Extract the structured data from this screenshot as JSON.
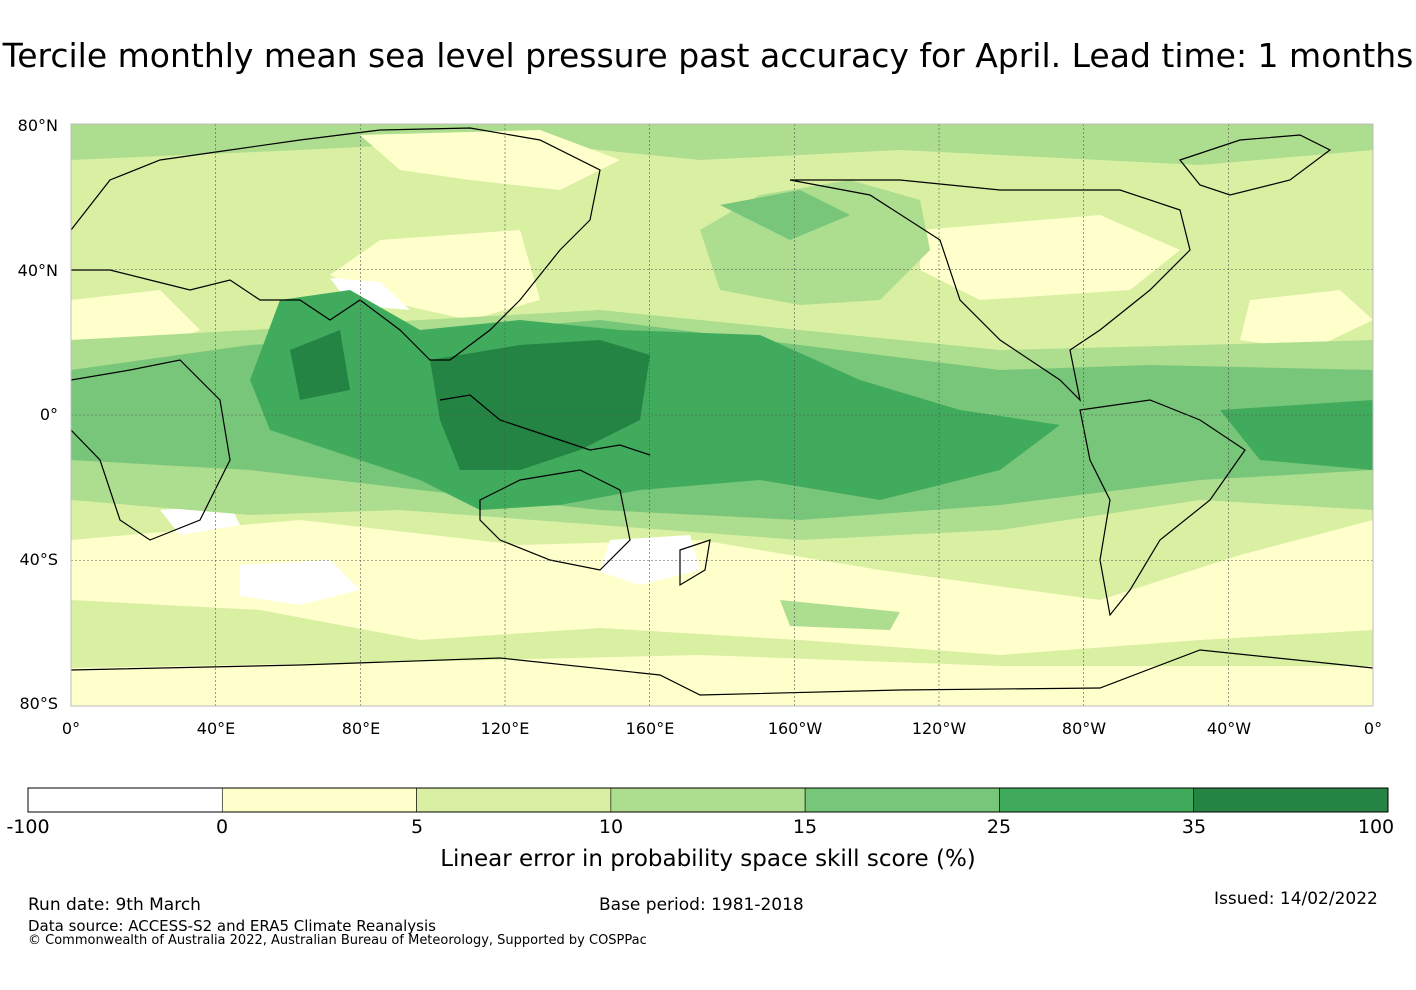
{
  "title": "Tercile monthly mean sea level pressure past accuracy for April. Lead time: 1 months",
  "map": {
    "lat_labels": [
      "80°N",
      "40°N",
      "0°",
      "40°S",
      "80°S"
    ],
    "lon_labels": [
      "0°",
      "40°E",
      "80°E",
      "120°E",
      "160°E",
      "160°W",
      "120°W",
      "80°W",
      "40°W",
      "0°"
    ],
    "lat_range": [
      -80,
      80
    ],
    "lon_range": [
      0,
      360
    ],
    "grid_spacing_deg": 40
  },
  "colorbar": {
    "ticks": [
      "-100",
      "0",
      "5",
      "10",
      "15",
      "25",
      "35",
      "100"
    ],
    "colors": [
      "#ffffff",
      "#ffffcc",
      "#d9f0a3",
      "#addd8e",
      "#78c679",
      "#41ab5d",
      "#238443"
    ],
    "label": "Linear error in probability space skill score (%)"
  },
  "footer": {
    "run_date": "Run date: 9th March",
    "base_period": "Base period: 1981-2018",
    "issued": "Issued: 14/02/2022",
    "data_source": "Data source: ACCESS-S2 and ERA5 Climate Reanalysis",
    "copyright": "© Commonwealth of Australia 2022, Australian Bureau of Meteorology, Supported by COSPPac"
  }
}
